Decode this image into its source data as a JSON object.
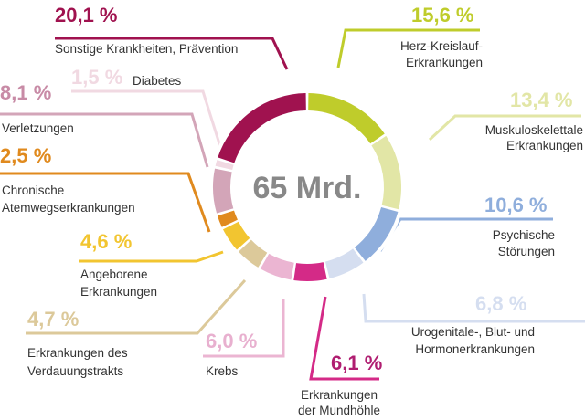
{
  "chart_data": {
    "type": "pie",
    "style": "donut",
    "center_label": "65 Mrd.",
    "slices": [
      {
        "key": "herz",
        "value": 15.6,
        "pct_label": "15,6 %",
        "label_lines": [
          "Herz-Kreislauf-",
          "Erkrankungen"
        ],
        "color": "#BFCC2B",
        "pct_color": "#BFCC2B"
      },
      {
        "key": "muskulo",
        "value": 13.4,
        "pct_label": "13,4 %",
        "label_lines": [
          "Muskuloskelettale",
          "Erkrankungen"
        ],
        "color": "#E2E6A6",
        "pct_color": "#E2E6A6"
      },
      {
        "key": "psychisch",
        "value": 10.6,
        "pct_label": "10,6 %",
        "label_lines": [
          "Psychische",
          "Störungen"
        ],
        "color": "#8FAEDC",
        "pct_color": "#8FAEDC"
      },
      {
        "key": "urogenital",
        "value": 6.8,
        "pct_label": "6,8 %",
        "label_lines": [
          "Urogenitale-, Blut- und",
          "Hormonerkrankungen"
        ],
        "color": "#D5DEF0",
        "pct_color": "#D5DEF0"
      },
      {
        "key": "mund",
        "value": 6.1,
        "pct_label": "6,1 %",
        "label_lines": [
          "Erkrankungen",
          "der Mundhöhle"
        ],
        "color": "#D42A87",
        "pct_color": "#B01E71"
      },
      {
        "key": "krebs",
        "value": 6.0,
        "pct_label": "6,0 %",
        "label_lines": [
          "Krebs"
        ],
        "color": "#EBB5D2",
        "pct_color": "#E8B0CF"
      },
      {
        "key": "verdauung",
        "value": 4.7,
        "pct_label": "4,7 %",
        "label_lines": [
          "Erkrankungen des",
          "Verdauungstrakts"
        ],
        "color": "#DCC99A",
        "pct_color": "#DCC99A"
      },
      {
        "key": "angeboren",
        "value": 4.6,
        "pct_label": "4,6 %",
        "label_lines": [
          "Angeborene",
          "Erkrankungen"
        ],
        "color": "#F2C530",
        "pct_color": "#F2C530"
      },
      {
        "key": "atemwege",
        "value": 2.5,
        "pct_label": "2,5 %",
        "label_lines": [
          "Chronische",
          "Atemwegserkrankungen"
        ],
        "color": "#E08A1E",
        "pct_color": "#E08A1E"
      },
      {
        "key": "verletz",
        "value": 8.1,
        "pct_label": "8,1 %",
        "label_lines": [
          "Verletzungen"
        ],
        "color": "#D3A5B8",
        "pct_color": "#C88BA6"
      },
      {
        "key": "diabetes",
        "value": 1.5,
        "pct_label": "1,5 %",
        "label_lines": [
          "Diabetes"
        ],
        "color": "#F1D9E2",
        "pct_color": "#F1D9E2"
      },
      {
        "key": "sonstige",
        "value": 20.1,
        "pct_label": "20,1 %",
        "label_lines": [
          "Sonstige Krankheiten, Prävention"
        ],
        "color": "#A0124F",
        "pct_color": "#A0124F"
      }
    ]
  }
}
